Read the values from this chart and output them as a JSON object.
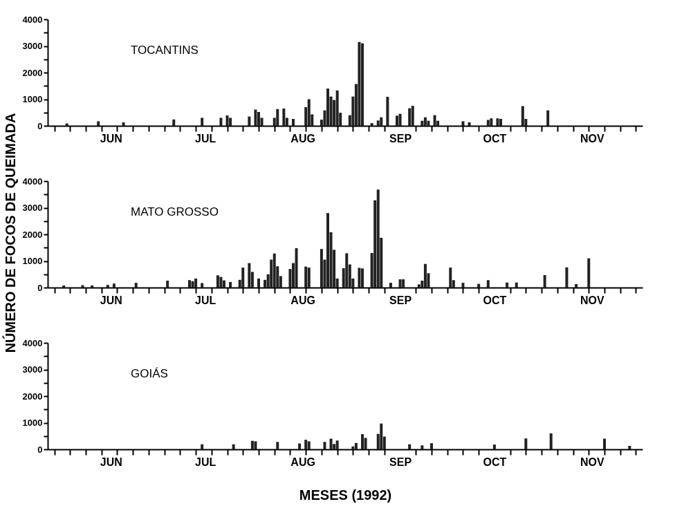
{
  "chart_data": [
    {
      "type": "bar",
      "title": "TOCANTINS",
      "color": "#222222",
      "x": [
        "1992-06-01",
        "1992-06-11",
        "1992-06-19",
        "1992-07-05",
        "1992-07-14",
        "1992-07-20",
        "1992-07-22",
        "1992-07-23",
        "1992-07-29",
        "1992-07-31",
        "1992-08-01",
        "1992-08-02",
        "1992-08-06",
        "1992-08-07",
        "1992-08-09",
        "1992-08-10",
        "1992-08-12",
        "1992-08-16",
        "1992-08-17",
        "1992-08-18",
        "1992-08-21",
        "1992-08-22",
        "1992-08-23",
        "1992-08-24",
        "1992-08-25",
        "1992-08-26",
        "1992-08-27",
        "1992-08-30",
        "1992-08-31",
        "1992-09-01",
        "1992-09-02",
        "1992-09-03",
        "1992-09-06",
        "1992-09-08",
        "1992-09-09",
        "1992-09-11",
        "1992-09-14",
        "1992-09-15",
        "1992-09-18",
        "1992-09-19",
        "1992-09-22",
        "1992-09-23",
        "1992-09-24",
        "1992-09-26",
        "1992-09-27",
        "1992-10-05",
        "1992-10-07",
        "1992-10-13",
        "1992-10-14",
        "1992-10-16",
        "1992-10-17",
        "1992-10-24",
        "1992-10-25",
        "1992-11-01"
      ],
      "values": [
        90,
        170,
        130,
        240,
        300,
        300,
        390,
        300,
        350,
        610,
        520,
        300,
        300,
        630,
        650,
        300,
        260,
        700,
        1000,
        430,
        230,
        580,
        1400,
        1100,
        970,
        1330,
        490,
        400,
        1100,
        1570,
        3150,
        3100,
        100,
        200,
        320,
        1090,
        380,
        450,
        660,
        750,
        190,
        320,
        190,
        400,
        190,
        170,
        130,
        220,
        280,
        280,
        260,
        740,
        260,
        580
      ],
      "xlim": [
        "1992-05-27",
        "1992-11-30"
      ],
      "xticks": [
        {
          "value": "1992-05-28",
          "label": null
        },
        {
          "value": "1992-06-02",
          "label": null
        },
        {
          "value": "1992-06-07",
          "label": null
        },
        {
          "value": "1992-06-12",
          "label": null
        },
        {
          "value": "1992-06-15",
          "label": "JUN"
        },
        {
          "value": "1992-06-17",
          "label": null
        },
        {
          "value": "1992-06-22",
          "label": null
        },
        {
          "value": "1992-06-27",
          "label": null
        },
        {
          "value": "1992-07-02",
          "label": null
        },
        {
          "value": "1992-07-07",
          "label": null
        },
        {
          "value": "1992-07-12",
          "label": null
        },
        {
          "value": "1992-07-15",
          "label": "JUL"
        },
        {
          "value": "1992-07-17",
          "label": null
        },
        {
          "value": "1992-07-22",
          "label": null
        },
        {
          "value": "1992-07-27",
          "label": null
        },
        {
          "value": "1992-08-01",
          "label": null
        },
        {
          "value": "1992-08-06",
          "label": null
        },
        {
          "value": "1992-08-11",
          "label": null
        },
        {
          "value": "1992-08-15",
          "label": "AUG"
        },
        {
          "value": "1992-08-16",
          "label": null
        },
        {
          "value": "1992-08-21",
          "label": null
        },
        {
          "value": "1992-08-26",
          "label": null
        },
        {
          "value": "1992-08-31",
          "label": null
        },
        {
          "value": "1992-09-05",
          "label": null
        },
        {
          "value": "1992-09-10",
          "label": null
        },
        {
          "value": "1992-09-15",
          "label": "SEP"
        },
        {
          "value": "1992-09-20",
          "label": null
        },
        {
          "value": "1992-09-25",
          "label": null
        },
        {
          "value": "1992-09-30",
          "label": null
        },
        {
          "value": "1992-10-05",
          "label": null
        },
        {
          "value": "1992-10-10",
          "label": null
        },
        {
          "value": "1992-10-15",
          "label": "OCT"
        },
        {
          "value": "1992-10-20",
          "label": null
        },
        {
          "value": "1992-10-25",
          "label": null
        },
        {
          "value": "1992-10-30",
          "label": null
        },
        {
          "value": "1992-11-04",
          "label": null
        },
        {
          "value": "1992-11-09",
          "label": null
        },
        {
          "value": "1992-11-14",
          "label": null
        },
        {
          "value": "1992-11-15",
          "label": "NOV"
        },
        {
          "value": "1992-11-19",
          "label": null
        },
        {
          "value": "1992-11-24",
          "label": null
        },
        {
          "value": "1992-11-29",
          "label": null
        }
      ],
      "ylim": [
        0,
        4000
      ],
      "yticks": [
        0,
        {
          "value": 500,
          "label": null
        },
        1000,
        {
          "value": 1500,
          "label": null
        },
        2000,
        {
          "value": 2500,
          "label": null
        },
        3000,
        {
          "value": 3500,
          "label": null
        },
        4000
      ]
    },
    {
      "type": "bar",
      "title": "MATO GROSSO",
      "color": "#222222",
      "ylabel": "NÚMERO DE FOCOS DE QUEIMADA",
      "x": [
        "1992-05-31",
        "1992-06-06",
        "1992-06-09",
        "1992-06-14",
        "1992-06-16",
        "1992-06-23",
        "1992-07-03",
        "1992-07-10",
        "1992-07-11",
        "1992-07-12",
        "1992-07-14",
        "1992-07-19",
        "1992-07-20",
        "1992-07-21",
        "1992-07-23",
        "1992-07-26",
        "1992-07-27",
        "1992-07-29",
        "1992-07-30",
        "1992-08-01",
        "1992-08-03",
        "1992-08-04",
        "1992-08-05",
        "1992-08-06",
        "1992-08-07",
        "1992-08-08",
        "1992-08-11",
        "1992-08-12",
        "1992-08-13",
        "1992-08-16",
        "1992-08-17",
        "1992-08-21",
        "1992-08-22",
        "1992-08-23",
        "1992-08-24",
        "1992-08-25",
        "1992-08-26",
        "1992-08-28",
        "1992-08-29",
        "1992-08-30",
        "1992-08-31",
        "1992-09-02",
        "1992-09-03",
        "1992-09-06",
        "1992-09-07",
        "1992-09-08",
        "1992-09-09",
        "1992-09-12",
        "1992-09-15",
        "1992-09-16",
        "1992-09-21",
        "1992-09-22",
        "1992-09-23",
        "1992-09-24",
        "1992-10-01",
        "1992-10-02",
        "1992-10-05",
        "1992-10-10",
        "1992-10-13",
        "1992-10-19",
        "1992-10-22",
        "1992-10-31",
        "1992-11-07",
        "1992-11-10",
        "1992-11-14"
      ],
      "values": [
        80,
        90,
        80,
        100,
        150,
        180,
        260,
        280,
        240,
        340,
        170,
        460,
        400,
        270,
        210,
        290,
        750,
        920,
        590,
        340,
        290,
        500,
        1050,
        1280,
        800,
        430,
        700,
        920,
        1480,
        790,
        750,
        1450,
        1050,
        2800,
        2080,
        1420,
        340,
        730,
        1290,
        870,
        340,
        740,
        720,
        1300,
        3280,
        3680,
        1870,
        180,
        310,
        310,
        120,
        260,
        890,
        540,
        750,
        280,
        180,
        140,
        280,
        190,
        190,
        470,
        760,
        130,
        1100
      ],
      "xlim": [
        "1992-05-27",
        "1992-11-30"
      ],
      "xticks": [
        {
          "value": "1992-05-28",
          "label": null
        },
        {
          "value": "1992-06-02",
          "label": null
        },
        {
          "value": "1992-06-07",
          "label": null
        },
        {
          "value": "1992-06-12",
          "label": null
        },
        {
          "value": "1992-06-15",
          "label": "JUN"
        },
        {
          "value": "1992-06-17",
          "label": null
        },
        {
          "value": "1992-06-22",
          "label": null
        },
        {
          "value": "1992-06-27",
          "label": null
        },
        {
          "value": "1992-07-02",
          "label": null
        },
        {
          "value": "1992-07-07",
          "label": null
        },
        {
          "value": "1992-07-12",
          "label": null
        },
        {
          "value": "1992-07-15",
          "label": "JUL"
        },
        {
          "value": "1992-07-17",
          "label": null
        },
        {
          "value": "1992-07-22",
          "label": null
        },
        {
          "value": "1992-07-27",
          "label": null
        },
        {
          "value": "1992-08-01",
          "label": null
        },
        {
          "value": "1992-08-06",
          "label": null
        },
        {
          "value": "1992-08-11",
          "label": null
        },
        {
          "value": "1992-08-15",
          "label": "AUG"
        },
        {
          "value": "1992-08-16",
          "label": null
        },
        {
          "value": "1992-08-21",
          "label": null
        },
        {
          "value": "1992-08-26",
          "label": null
        },
        {
          "value": "1992-08-31",
          "label": null
        },
        {
          "value": "1992-09-05",
          "label": null
        },
        {
          "value": "1992-09-10",
          "label": null
        },
        {
          "value": "1992-09-15",
          "label": "SEP"
        },
        {
          "value": "1992-09-20",
          "label": null
        },
        {
          "value": "1992-09-25",
          "label": null
        },
        {
          "value": "1992-09-30",
          "label": null
        },
        {
          "value": "1992-10-05",
          "label": null
        },
        {
          "value": "1992-10-10",
          "label": null
        },
        {
          "value": "1992-10-15",
          "label": "OCT"
        },
        {
          "value": "1992-10-20",
          "label": null
        },
        {
          "value": "1992-10-25",
          "label": null
        },
        {
          "value": "1992-10-30",
          "label": null
        },
        {
          "value": "1992-11-04",
          "label": null
        },
        {
          "value": "1992-11-09",
          "label": null
        },
        {
          "value": "1992-11-14",
          "label": null
        },
        {
          "value": "1992-11-15",
          "label": "NOV"
        },
        {
          "value": "1992-11-19",
          "label": null
        },
        {
          "value": "1992-11-24",
          "label": null
        },
        {
          "value": "1992-11-29",
          "label": null
        }
      ],
      "ylim": [
        0,
        4000
      ],
      "yticks": [
        0,
        {
          "value": 500,
          "label": null
        },
        1000,
        {
          "value": 1500,
          "label": null
        },
        2000,
        {
          "value": 2500,
          "label": null
        },
        3000,
        {
          "value": 3500,
          "label": null
        },
        4000
      ]
    },
    {
      "type": "bar",
      "title": "GOIÁS",
      "color": "#222222",
      "xlabel": "MESES (1992)",
      "x": [
        "1992-07-14",
        "1992-07-24",
        "1992-07-30",
        "1992-07-31",
        "1992-08-07",
        "1992-08-14",
        "1992-08-16",
        "1992-08-17",
        "1992-08-22",
        "1992-08-24",
        "1992-08-25",
        "1992-08-26",
        "1992-08-31",
        "1992-09-01",
        "1992-09-03",
        "1992-09-04",
        "1992-09-08",
        "1992-09-09",
        "1992-09-10",
        "1992-09-18",
        "1992-09-22",
        "1992-09-25",
        "1992-10-15",
        "1992-10-25",
        "1992-11-02",
        "1992-11-19",
        "1992-11-27"
      ],
      "values": [
        190,
        190,
        320,
        300,
        280,
        220,
        360,
        300,
        280,
        400,
        200,
        330,
        110,
        240,
        570,
        430,
        580,
        970,
        480,
        190,
        150,
        230,
        180,
        410,
        600,
        400,
        130
      ],
      "xlim": [
        "1992-05-27",
        "1992-11-30"
      ],
      "xticks": [
        {
          "value": "1992-05-28",
          "label": null
        },
        {
          "value": "1992-06-02",
          "label": null
        },
        {
          "value": "1992-06-07",
          "label": null
        },
        {
          "value": "1992-06-12",
          "label": null
        },
        {
          "value": "1992-06-15",
          "label": "JUN"
        },
        {
          "value": "1992-06-17",
          "label": null
        },
        {
          "value": "1992-06-22",
          "label": null
        },
        {
          "value": "1992-06-27",
          "label": null
        },
        {
          "value": "1992-07-02",
          "label": null
        },
        {
          "value": "1992-07-07",
          "label": null
        },
        {
          "value": "1992-07-12",
          "label": null
        },
        {
          "value": "1992-07-15",
          "label": "JUL"
        },
        {
          "value": "1992-07-17",
          "label": null
        },
        {
          "value": "1992-07-22",
          "label": null
        },
        {
          "value": "1992-07-27",
          "label": null
        },
        {
          "value": "1992-08-01",
          "label": null
        },
        {
          "value": "1992-08-06",
          "label": null
        },
        {
          "value": "1992-08-11",
          "label": null
        },
        {
          "value": "1992-08-15",
          "label": "AUG"
        },
        {
          "value": "1992-08-16",
          "label": null
        },
        {
          "value": "1992-08-21",
          "label": null
        },
        {
          "value": "1992-08-26",
          "label": null
        },
        {
          "value": "1992-08-31",
          "label": null
        },
        {
          "value": "1992-09-05",
          "label": null
        },
        {
          "value": "1992-09-10",
          "label": null
        },
        {
          "value": "1992-09-15",
          "label": "SEP"
        },
        {
          "value": "1992-09-20",
          "label": null
        },
        {
          "value": "1992-09-25",
          "label": null
        },
        {
          "value": "1992-09-30",
          "label": null
        },
        {
          "value": "1992-10-05",
          "label": null
        },
        {
          "value": "1992-10-10",
          "label": null
        },
        {
          "value": "1992-10-15",
          "label": "OCT"
        },
        {
          "value": "1992-10-20",
          "label": null
        },
        {
          "value": "1992-10-25",
          "label": null
        },
        {
          "value": "1992-10-30",
          "label": null
        },
        {
          "value": "1992-11-04",
          "label": null
        },
        {
          "value": "1992-11-09",
          "label": null
        },
        {
          "value": "1992-11-14",
          "label": null
        },
        {
          "value": "1992-11-15",
          "label": "NOV"
        },
        {
          "value": "1992-11-19",
          "label": null
        },
        {
          "value": "1992-11-24",
          "label": null
        },
        {
          "value": "1992-11-29",
          "label": null
        }
      ],
      "ylim": [
        0,
        4000
      ],
      "yticks": [
        0,
        {
          "value": 500,
          "label": null
        },
        1000,
        {
          "value": 1500,
          "label": null
        },
        2000,
        {
          "value": 2500,
          "label": null
        },
        3000,
        {
          "value": 3500,
          "label": null
        },
        4000
      ]
    }
  ]
}
